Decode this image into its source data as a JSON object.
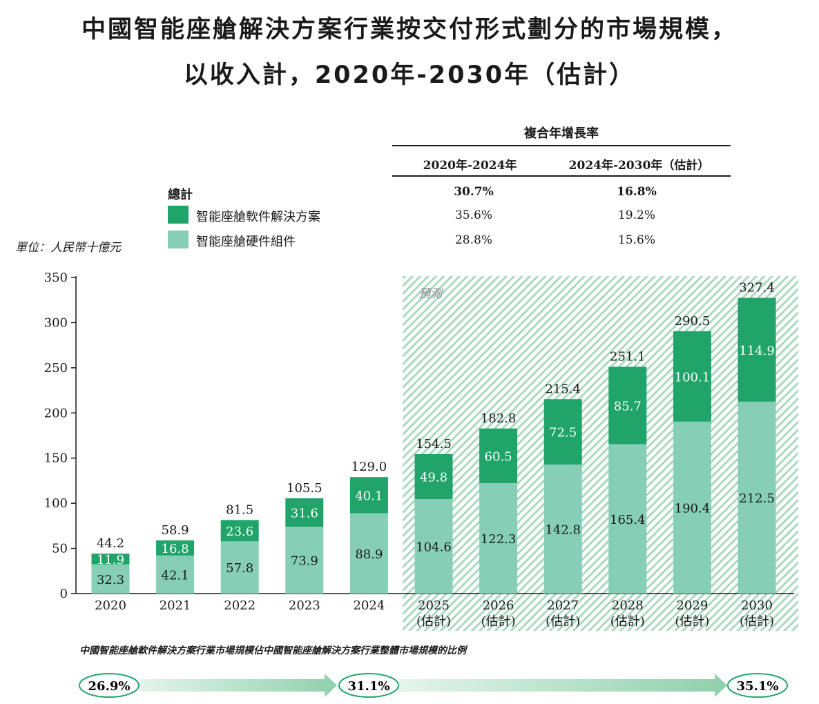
{
  "title_line1": "中國智能座艙解決方案行業按交付形式劃分的市場規模，",
  "title_line2": "以收入計，2020年-2030年（估計）",
  "cagr": {
    "header": "複合年增長率",
    "col1": "2020年-2024年",
    "col2": "2024年-2030年（估計）",
    "rows": [
      {
        "label": "總計",
        "v1": "30.7%",
        "v2": "16.8%"
      },
      {
        "label": "智能座艙軟件解決方案",
        "v1": "35.6%",
        "v2": "19.2%"
      },
      {
        "label": "智能座艙硬件組件",
        "v1": "28.8%",
        "v2": "15.6%"
      }
    ]
  },
  "unit": "單位：人民幣十億元",
  "forecast_label": "預測",
  "colors": {
    "software": "#20a46a",
    "hardware": "#86ceb5",
    "forecast_pattern": "#a9d9bf",
    "axis": "#1a1a1a"
  },
  "chart_data": {
    "type": "bar",
    "stacked": true,
    "categories": [
      "2020",
      "2021",
      "2022",
      "2023",
      "2024",
      "2025\n(估計)",
      "2026\n(估計)",
      "2027\n(估計)",
      "2028\n(估計)",
      "2029\n(估計)",
      "2030\n(估計)"
    ],
    "series": [
      {
        "name": "智能座艙硬件組件",
        "values": [
          32.3,
          42.1,
          57.8,
          73.9,
          88.9,
          104.6,
          122.3,
          142.8,
          165.4,
          190.4,
          212.5
        ]
      },
      {
        "name": "智能座艙軟件解決方案",
        "values": [
          11.9,
          16.8,
          23.6,
          31.6,
          40.1,
          49.8,
          60.5,
          72.5,
          85.7,
          100.1,
          114.9
        ]
      }
    ],
    "totals": [
      44.2,
      58.9,
      81.5,
      105.5,
      129.0,
      154.5,
      182.8,
      215.4,
      251.1,
      290.5,
      327.4
    ],
    "ylim": [
      0,
      350
    ],
    "yticks": [
      0,
      50,
      100,
      150,
      200,
      250,
      300,
      350
    ],
    "forecast_start_index": 5
  },
  "footer": {
    "caption": "中國智能座艙軟件解決方案行業市場規模佔中國智能座艙解決方案行業整體市場規模的比例",
    "shares": [
      "26.9%",
      "31.1%",
      "35.1%"
    ]
  }
}
